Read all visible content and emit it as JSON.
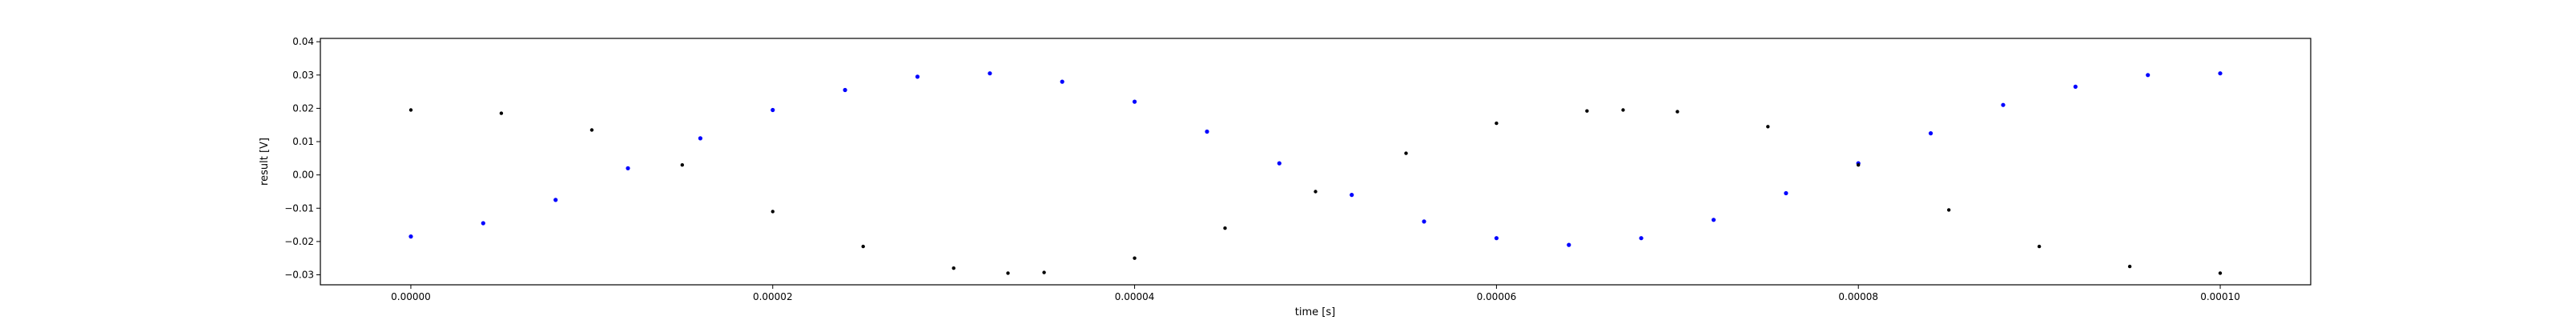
{
  "chart_data": {
    "type": "scatter",
    "title": "",
    "xlabel": "time [s]",
    "ylabel": "result [V]",
    "xlim": [
      -5e-06,
      0.000105
    ],
    "ylim": [
      -0.033,
      0.041
    ],
    "xticks": [
      0,
      2e-05,
      4e-05,
      6e-05,
      8e-05,
      0.0001
    ],
    "xtick_labels": [
      "0.00000",
      "0.00002",
      "0.00004",
      "0.00006",
      "0.00008",
      "0.00010"
    ],
    "yticks": [
      -0.03,
      -0.02,
      -0.01,
      0.0,
      0.01,
      0.02,
      0.03,
      0.04
    ],
    "ytick_labels": [
      "−0.03",
      "−0.02",
      "−0.01",
      "0.00",
      "0.01",
      "0.02",
      "0.03",
      "0.04"
    ],
    "grid": false,
    "legend": "none",
    "series": [
      {
        "color": "#0000ff",
        "marker": "dot",
        "x": [
          0,
          4e-06,
          8e-06,
          1.2e-05,
          1.6e-05,
          2e-05,
          2.4e-05,
          2.8e-05,
          3.2e-05,
          3.6e-05,
          4e-05,
          4.4e-05,
          4.8e-05,
          5.2e-05,
          5.6e-05,
          6e-05,
          6.4e-05,
          6.8e-05,
          7.2e-05,
          7.6e-05,
          8e-05,
          8.4e-05,
          8.8e-05,
          9.2e-05,
          9.6e-05,
          0.0001
        ],
        "y": [
          -0.0185,
          -0.0145,
          -0.0075,
          0.002,
          0.011,
          0.0195,
          0.0255,
          0.0295,
          0.0305,
          0.028,
          0.022,
          0.013,
          0.0035,
          -0.006,
          -0.014,
          -0.019,
          -0.021,
          -0.019,
          -0.0135,
          -0.0055,
          0.0035,
          0.0125,
          0.021,
          0.0265,
          0.03,
          0.0305
        ]
      },
      {
        "color": "#000000",
        "marker": "dot",
        "x": [
          0,
          5e-06,
          1e-05,
          1.5e-05,
          2e-05,
          2.5e-05,
          3e-05,
          3.3e-05,
          3.5e-05,
          4e-05,
          4.5e-05,
          5e-05,
          5.5e-05,
          6e-05,
          6.5e-05,
          6.7e-05,
          7e-05,
          7.5e-05,
          8e-05,
          8.5e-05,
          9e-05,
          9.5e-05,
          0.0001
        ],
        "y": [
          0.0195,
          0.0185,
          0.0135,
          0.003,
          -0.011,
          -0.0215,
          -0.028,
          -0.0295,
          -0.0293,
          -0.025,
          -0.016,
          -0.005,
          0.0065,
          0.0155,
          0.0192,
          0.0195,
          0.019,
          0.0145,
          0.003,
          -0.0105,
          -0.0215,
          -0.0275,
          -0.0295
        ]
      }
    ]
  }
}
